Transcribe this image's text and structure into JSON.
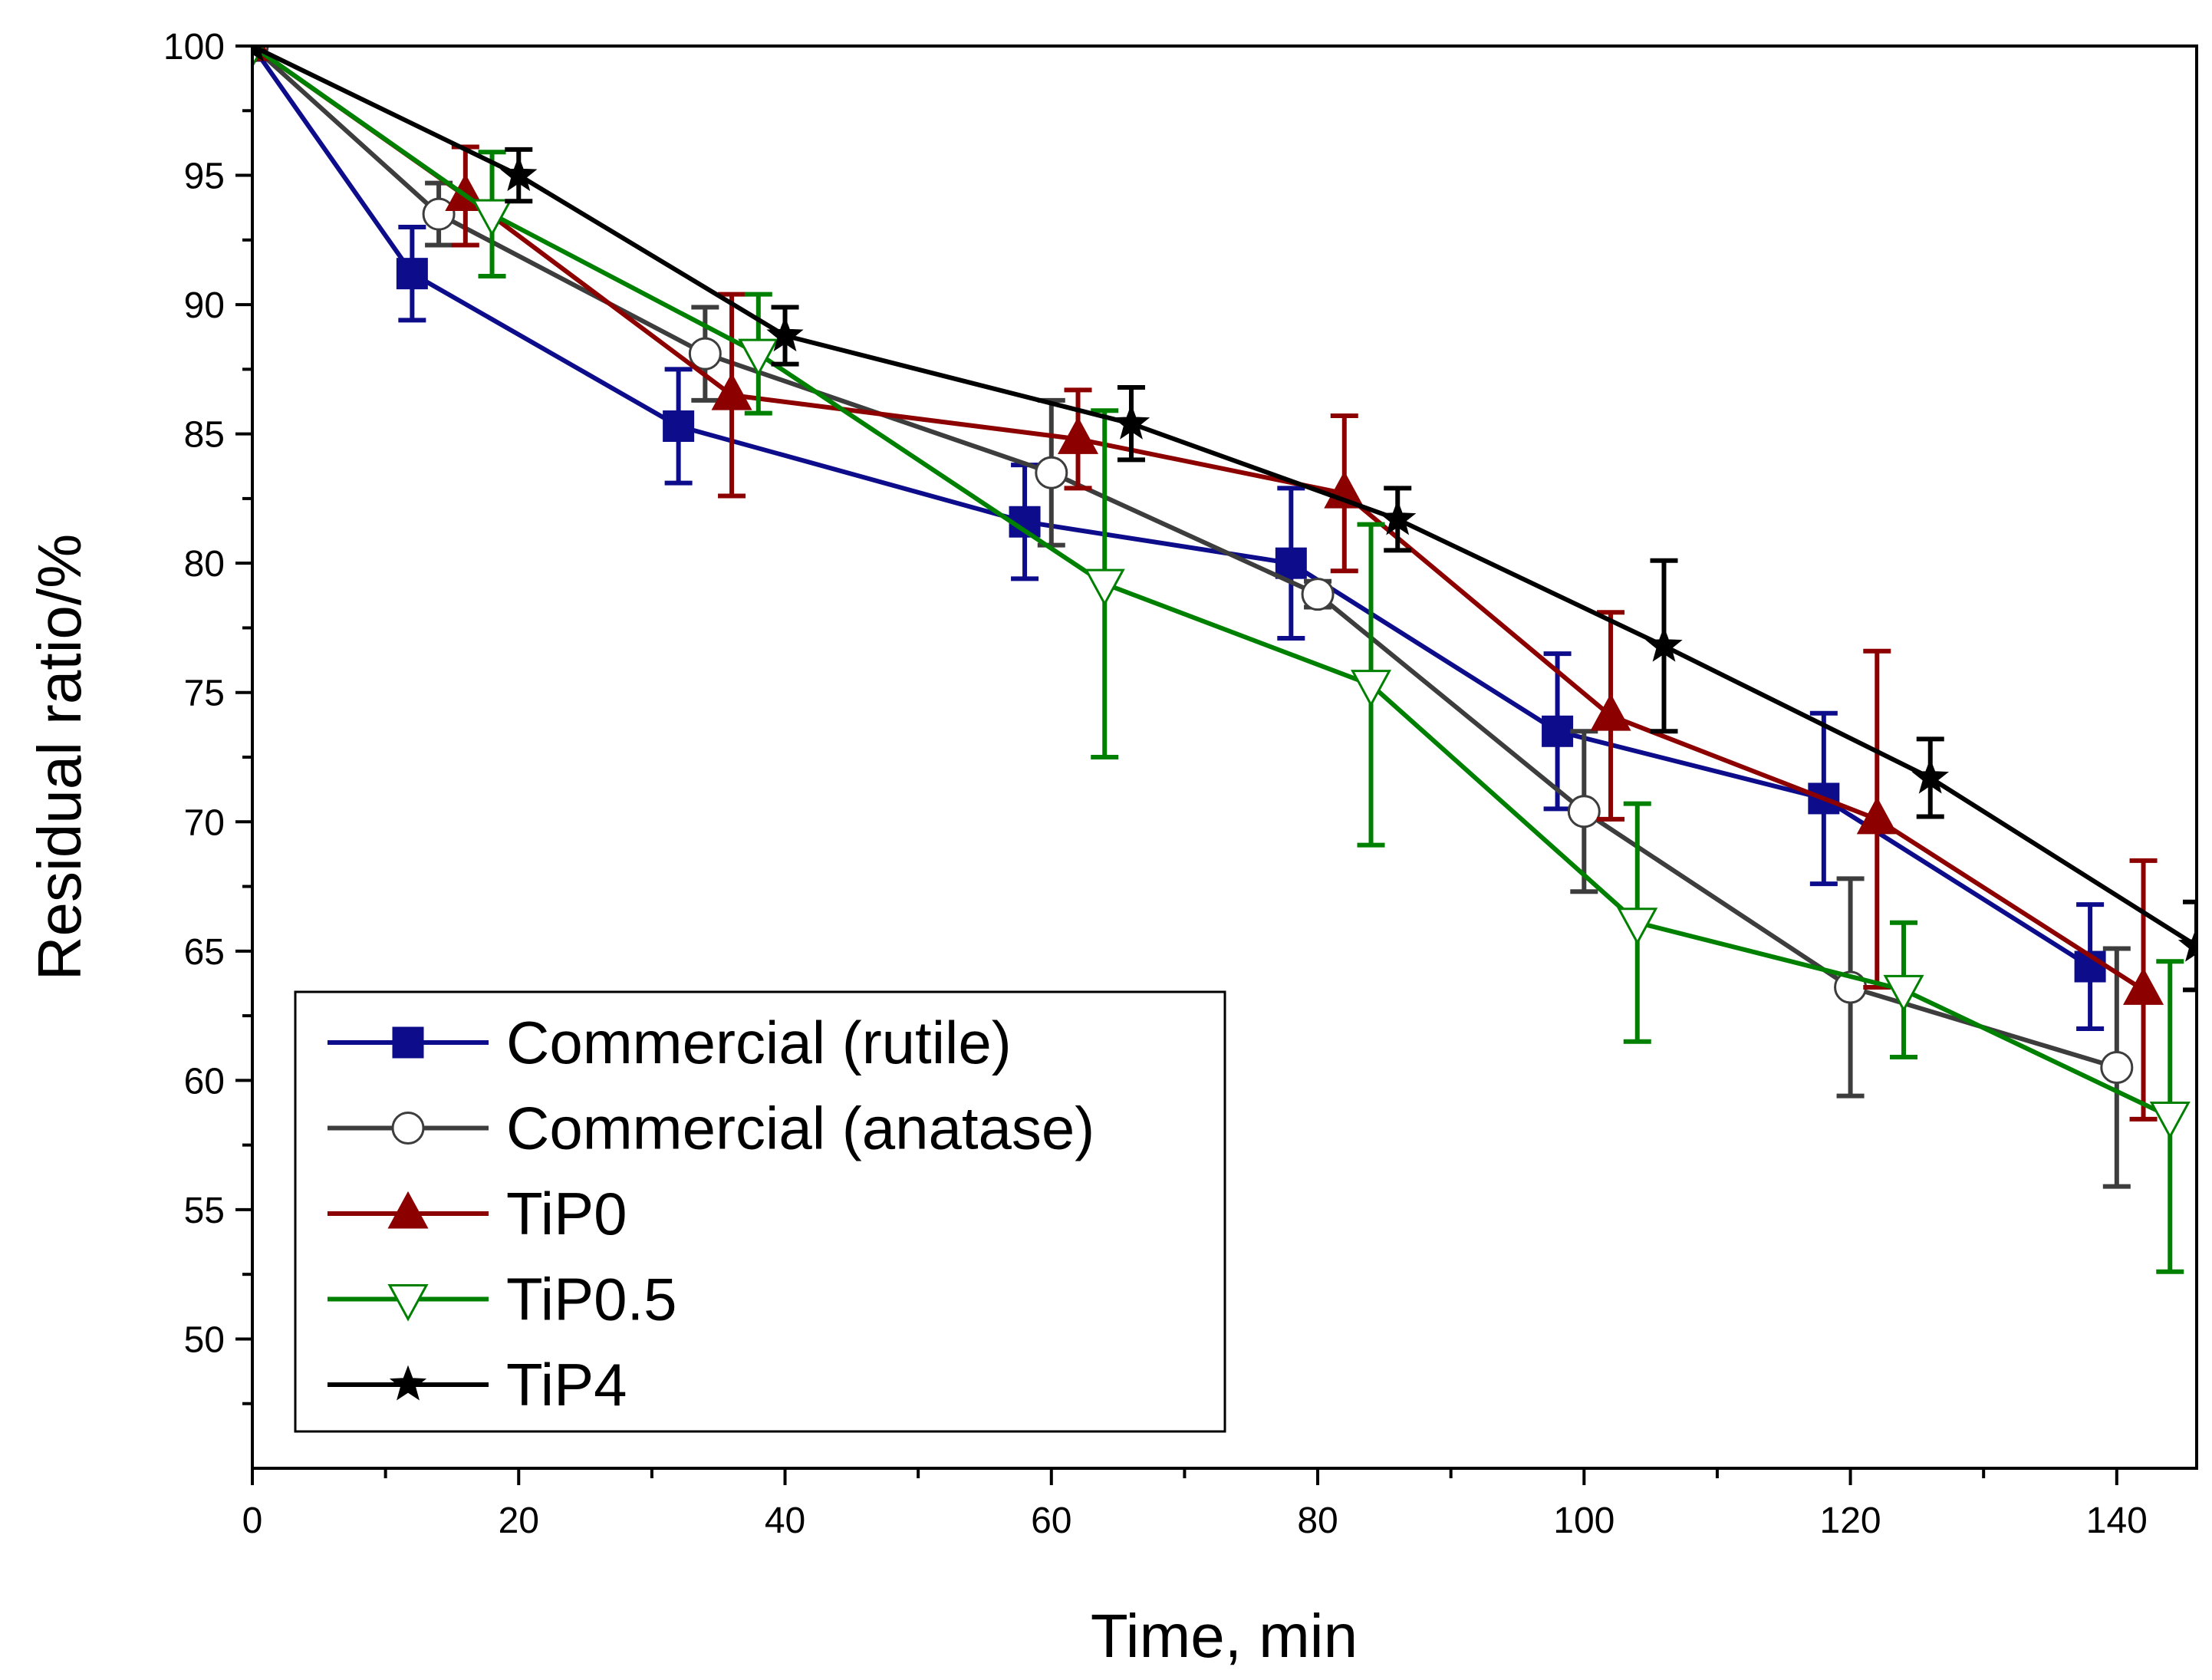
{
  "chart_data": {
    "type": "line",
    "xlabel": "Time, min",
    "ylabel": "Residual ratio/%",
    "xlim": [
      0,
      146
    ],
    "ylim": [
      45,
      100
    ],
    "x_ticks": [
      "0",
      "20",
      "40",
      "60",
      "80",
      "100",
      "120",
      "140"
    ],
    "y_ticks": [
      "50",
      "55",
      "60",
      "65",
      "70",
      "75",
      "80",
      "85",
      "90",
      "95",
      "100"
    ],
    "grid": false,
    "legend_position": "bottom-left",
    "series": [
      {
        "name": "Commercial (rutile)",
        "color": "#0d0d8c",
        "marker": "square-filled",
        "points": [
          {
            "x": 0,
            "y": 100,
            "err": 0
          },
          {
            "x": 12,
            "y": 91.2,
            "err": 1.8
          },
          {
            "x": 32,
            "y": 85.3,
            "err": 2.2
          },
          {
            "x": 58,
            "y": 81.6,
            "err": 2.2
          },
          {
            "x": 78,
            "y": 80.0,
            "err": 2.9
          },
          {
            "x": 98,
            "y": 73.5,
            "err": 3.0
          },
          {
            "x": 118,
            "y": 70.9,
            "err": 3.3
          },
          {
            "x": 138,
            "y": 64.4,
            "err": 2.4
          }
        ]
      },
      {
        "name": "Commercial (anatase)",
        "color": "#3d3d3d",
        "marker": "circle-open",
        "points": [
          {
            "x": 0,
            "y": 100,
            "err": 0
          },
          {
            "x": 14,
            "y": 93.5,
            "err": 1.2
          },
          {
            "x": 34,
            "y": 88.1,
            "err": 1.8
          },
          {
            "x": 60,
            "y": 83.5,
            "err": 2.8
          },
          {
            "x": 80,
            "y": 78.8,
            "err": 0.5
          },
          {
            "x": 100,
            "y": 70.4,
            "err": 3.1
          },
          {
            "x": 120,
            "y": 63.6,
            "err": 4.2
          },
          {
            "x": 140,
            "y": 60.5,
            "err": 4.6
          }
        ]
      },
      {
        "name": "TiP0",
        "color": "#8c0000",
        "marker": "triangle-up-filled",
        "points": [
          {
            "x": 0,
            "y": 100,
            "err": 0
          },
          {
            "x": 16,
            "y": 94.2,
            "err": 1.9
          },
          {
            "x": 36,
            "y": 86.5,
            "err": 3.9
          },
          {
            "x": 62,
            "y": 84.8,
            "err": 1.9
          },
          {
            "x": 82,
            "y": 82.7,
            "err": 3.0
          },
          {
            "x": 102,
            "y": 74.1,
            "err": 4.0
          },
          {
            "x": 122,
            "y": 70.1,
            "err": 6.5
          },
          {
            "x": 142,
            "y": 63.5,
            "err": 5.0
          }
        ]
      },
      {
        "name": "TiP0.5",
        "color": "#008000",
        "marker": "triangle-down-open",
        "points": [
          {
            "x": 0,
            "y": 100,
            "err": 0
          },
          {
            "x": 18,
            "y": 93.5,
            "err": 2.4
          },
          {
            "x": 38,
            "y": 88.1,
            "err": 2.3
          },
          {
            "x": 64,
            "y": 79.2,
            "err": 6.7
          },
          {
            "x": 84,
            "y": 75.3,
            "err": 6.2
          },
          {
            "x": 104,
            "y": 66.1,
            "err": 4.6
          },
          {
            "x": 124,
            "y": 63.5,
            "err": 2.6
          },
          {
            "x": 144,
            "y": 58.6,
            "err": 6.0
          }
        ]
      },
      {
        "name": "TiP4",
        "color": "#000000",
        "marker": "star-filled",
        "points": [
          {
            "x": 0,
            "y": 100,
            "err": 0
          },
          {
            "x": 20,
            "y": 95.0,
            "err": 1.0
          },
          {
            "x": 40,
            "y": 88.8,
            "err": 1.1
          },
          {
            "x": 66,
            "y": 85.4,
            "err": 1.4
          },
          {
            "x": 86,
            "y": 81.7,
            "err": 1.2
          },
          {
            "x": 106,
            "y": 76.8,
            "err": 3.3
          },
          {
            "x": 126,
            "y": 71.7,
            "err": 1.5
          },
          {
            "x": 146,
            "y": 65.2,
            "err": 1.7
          }
        ]
      }
    ]
  }
}
